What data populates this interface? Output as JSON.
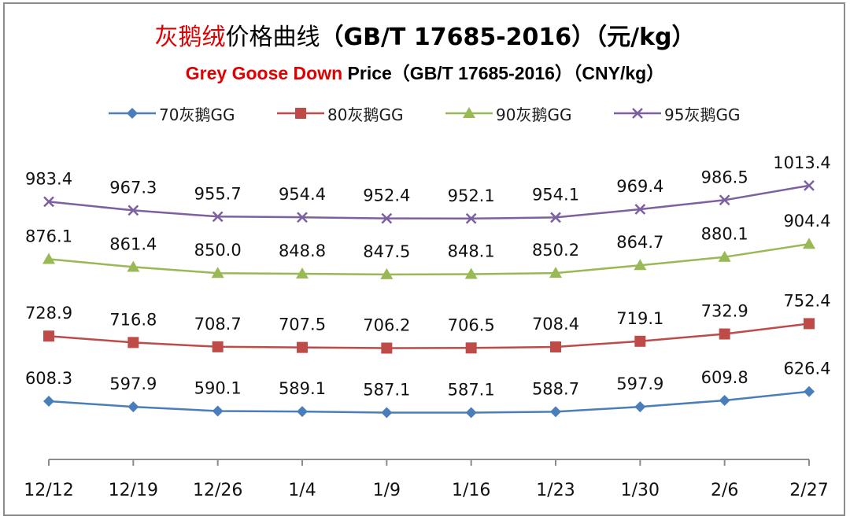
{
  "title": {
    "cn_highlight": "灰鹅绒",
    "cn_rest": "价格曲线",
    "cn_std": "（GB/T 17685-2016）（元/kg）",
    "en_highlight": "Grey Goose Down",
    "en_rest": " Price（GB/T 17685-2016）（CNY/kg）"
  },
  "colors": {
    "title_highlight": "#e00000",
    "series": [
      "#4a7ebb",
      "#be4b48",
      "#98b954",
      "#7d60a0"
    ]
  },
  "chart_data": {
    "type": "line",
    "categories": [
      "12/12",
      "12/19",
      "12/26",
      "1/4",
      "1/9",
      "1/16",
      "1/23",
      "1/30",
      "2/6",
      "2/27"
    ],
    "series": [
      {
        "name": "70灰鹅GG",
        "marker": "diamond",
        "values": [
          608.3,
          597.9,
          590.1,
          589.1,
          587.1,
          587.1,
          588.7,
          597.9,
          609.8,
          626.4
        ]
      },
      {
        "name": "80灰鹅GG",
        "marker": "square",
        "values": [
          728.9,
          716.8,
          708.7,
          707.5,
          706.2,
          706.5,
          708.4,
          719.1,
          732.9,
          752.4
        ]
      },
      {
        "name": "90灰鹅GG",
        "marker": "triangle",
        "values": [
          876.1,
          861.4,
          850.0,
          848.8,
          847.5,
          848.1,
          850.2,
          864.7,
          880.1,
          904.4
        ]
      },
      {
        "name": "95灰鹅GG",
        "marker": "x",
        "values": [
          983.4,
          967.3,
          955.7,
          954.4,
          952.4,
          952.1,
          954.1,
          969.4,
          986.5,
          1013.4
        ]
      }
    ],
    "value_labels": [
      [
        "608.3",
        "597.9",
        "590.1",
        "589.1",
        "587.1",
        "587.1",
        "588.7",
        "597.9",
        "609.8",
        "626.4"
      ],
      [
        "728.9",
        "716.8",
        "708.7",
        "707.5",
        "706.2",
        "706.5",
        "708.4",
        "719.1",
        "732.9",
        "752.4"
      ],
      [
        "876.1",
        "861.4",
        "850.0",
        "848.8",
        "847.5",
        "848.1",
        "850.2",
        "864.7",
        "880.1",
        "904.4"
      ],
      [
        "983.4",
        "967.3",
        "955.7",
        "954.4",
        "952.4",
        "952.1",
        "954.1",
        "969.4",
        "986.5",
        "1013.4"
      ]
    ],
    "legend_position": "top",
    "grid": false,
    "y_axis_visible": false
  }
}
